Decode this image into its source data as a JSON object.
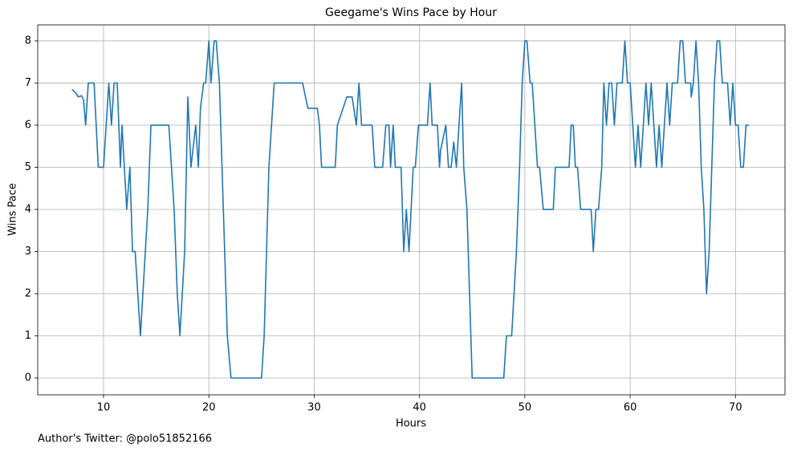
{
  "chart_data": {
    "type": "line",
    "title": "Geegame's Wins Pace by Hour",
    "x_label": "Hours",
    "y_label": "Wins Pace",
    "annotation": "Author's Twitter: @polo51852166",
    "x": [
      7.0,
      7.4,
      7.6,
      7.9,
      8.1,
      8.3,
      8.55,
      9.1,
      9.5,
      10.0,
      10.5,
      10.75,
      11.0,
      11.3,
      11.6,
      11.75,
      12.2,
      12.5,
      12.75,
      13.0,
      13.5,
      14.2,
      14.5,
      16.2,
      16.7,
      17.0,
      17.25,
      17.7,
      18.0,
      18.3,
      18.75,
      19.0,
      19.2,
      19.5,
      19.7,
      20.0,
      20.2,
      20.5,
      20.7,
      21.0,
      21.75,
      22.1,
      25.0,
      25.25,
      25.7,
      26.2,
      28.9,
      29.4,
      30.3,
      30.5,
      30.7,
      32.0,
      32.2,
      33.1,
      33.6,
      34.0,
      34.25,
      34.5,
      35.5,
      35.75,
      36.5,
      36.8,
      37.1,
      37.25,
      37.5,
      37.7,
      38.25,
      38.5,
      38.75,
      39.0,
      39.4,
      39.6,
      39.9,
      40.75,
      41.0,
      41.2,
      41.7,
      41.9,
      42.0,
      42.5,
      42.75,
      43.0,
      43.25,
      43.5,
      44.0,
      44.2,
      44.5,
      45.0,
      48.0,
      48.25,
      48.75,
      49.2,
      49.5,
      49.75,
      50.0,
      50.2,
      50.5,
      50.7,
      51.2,
      51.4,
      51.75,
      52.7,
      52.9,
      54.2,
      54.4,
      54.6,
      54.8,
      55.0,
      55.3,
      56.3,
      56.5,
      56.75,
      57.0,
      57.3,
      57.5,
      57.75,
      58.0,
      58.25,
      58.5,
      58.75,
      59.25,
      59.5,
      59.75,
      60.0,
      60.25,
      60.5,
      60.75,
      61.0,
      61.5,
      61.75,
      62.0,
      62.25,
      62.5,
      62.75,
      63.0,
      63.5,
      63.75,
      64.0,
      64.5,
      64.75,
      65.0,
      65.25,
      65.75,
      65.8,
      66.0,
      66.25,
      66.5,
      66.75,
      67.0,
      67.25,
      67.5,
      67.75,
      68.0,
      68.25,
      68.5,
      68.75,
      69.25,
      69.5,
      69.75,
      70.0,
      70.25,
      70.5,
      70.75,
      71.0,
      71.25
    ],
    "series": [
      {
        "name": "Wins Pace",
        "color": "#1f77b4",
        "values": [
          6.85,
          6.75,
          6.67,
          6.7,
          6.6,
          6,
          7,
          7,
          5,
          5,
          7,
          6,
          7,
          7,
          5,
          6,
          4,
          5,
          3,
          3,
          1,
          4,
          6,
          6,
          4,
          2,
          1,
          3,
          6.67,
          5,
          6,
          5,
          6.4,
          7,
          7,
          8,
          7,
          8,
          8,
          7,
          1,
          0,
          0,
          1,
          5,
          7,
          7,
          6.4,
          6.4,
          6,
          5,
          5,
          6,
          6.67,
          6.67,
          6,
          7,
          6,
          6,
          5,
          5,
          6,
          6,
          5,
          6,
          5,
          5,
          3,
          4,
          3,
          5,
          5,
          6,
          6,
          7,
          6,
          6,
          5,
          5.4,
          6,
          5,
          5,
          5.6,
          5,
          7,
          5,
          4,
          0,
          0,
          1,
          1,
          3,
          5,
          7,
          8,
          8,
          7,
          7,
          5,
          5,
          4,
          4,
          5,
          5,
          6,
          6,
          5,
          5,
          4,
          4,
          3,
          4,
          4,
          5,
          7,
          6,
          7,
          7,
          6,
          7,
          7,
          8,
          7,
          7,
          6,
          5,
          6,
          5,
          7,
          6,
          7,
          6,
          5,
          6,
          5,
          7,
          6,
          7,
          7,
          8,
          8,
          7,
          7,
          6.67,
          7,
          8,
          7,
          5,
          4,
          2,
          3,
          5,
          7,
          8,
          8,
          7,
          7,
          6,
          7,
          6,
          6,
          5,
          5,
          6,
          6
        ]
      }
    ],
    "xlim": [
      3.75,
      74.7
    ],
    "ylim": [
      -0.4,
      8.38
    ],
    "xticks": [
      10,
      20,
      30,
      40,
      50,
      60,
      70
    ],
    "yticks": [
      0,
      1,
      2,
      3,
      4,
      5,
      6,
      7,
      8
    ],
    "grid": true
  }
}
